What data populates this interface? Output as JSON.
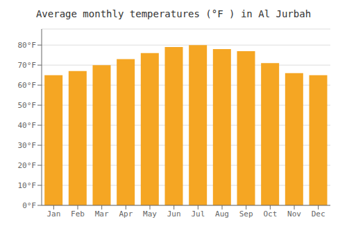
{
  "chart_data": {
    "type": "bar",
    "title": "Average monthly temperatures (°F ) in Al Jurbah",
    "categories": [
      "Jan",
      "Feb",
      "Mar",
      "Apr",
      "May",
      "Jun",
      "Jul",
      "Aug",
      "Sep",
      "Oct",
      "Nov",
      "Dec"
    ],
    "values": [
      65,
      67,
      70,
      73,
      76,
      79,
      80,
      78,
      77,
      71,
      66,
      65
    ],
    "color": "#F5A623",
    "ylim": [
      0,
      88
    ],
    "yticks": [
      {
        "value": 0,
        "label": "0°F"
      },
      {
        "value": 10,
        "label": "10°F"
      },
      {
        "value": 20,
        "label": "20°F"
      },
      {
        "value": 30,
        "label": "30°F"
      },
      {
        "value": 40,
        "label": "40°F"
      },
      {
        "value": 50,
        "label": "50°F"
      },
      {
        "value": 60,
        "label": "60°F"
      },
      {
        "value": 70,
        "label": "70°F"
      },
      {
        "value": 80,
        "label": "80°F"
      }
    ],
    "grid": true
  }
}
